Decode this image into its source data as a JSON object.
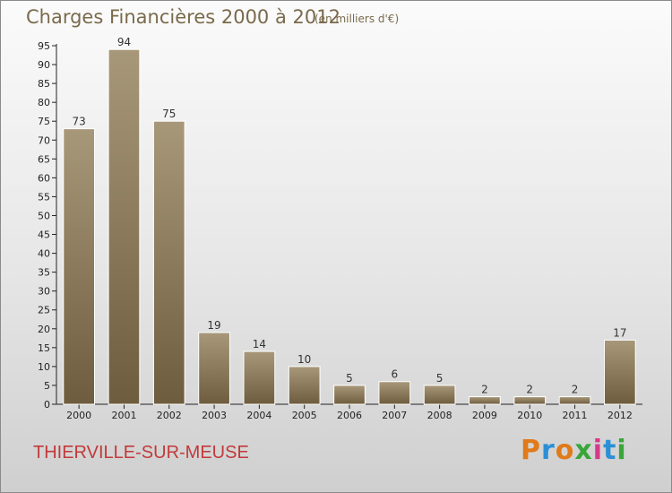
{
  "chart_data": {
    "type": "bar",
    "title": "Charges Financières 2000 à 2012",
    "subtitle": "(en milliers d'€)",
    "categories": [
      "2000",
      "2001",
      "2002",
      "2003",
      "2004",
      "2005",
      "2006",
      "2007",
      "2008",
      "2009",
      "2010",
      "2011",
      "2012"
    ],
    "values": [
      73,
      94,
      75,
      19,
      14,
      10,
      5,
      6,
      5,
      2,
      2,
      2,
      17
    ],
    "data_labels": [
      "73",
      "94",
      "75",
      "19",
      "14",
      "10",
      "5",
      "6",
      "5",
      "2",
      "2",
      "2",
      "17"
    ],
    "y_ticks": [
      "0",
      "5",
      "10",
      "15",
      "20",
      "25",
      "30",
      "35",
      "40",
      "45",
      "50",
      "55",
      "60",
      "65",
      "70",
      "75",
      "80",
      "85",
      "90",
      "95"
    ],
    "ylim": [
      0,
      95
    ],
    "grid": false,
    "bar_color": "#8f7d5c",
    "bar_color_top": "#a8987a",
    "bar_color_bottom": "#6e5c3e"
  },
  "footer": {
    "town": "THIERVILLE-SUR-MEUSE",
    "brand_letters": [
      {
        "ch": "P",
        "color": "#e07a1a"
      },
      {
        "ch": "r",
        "color": "#2a8fd6"
      },
      {
        "ch": "o",
        "color": "#e07a1a"
      },
      {
        "ch": "x",
        "color": "#3aa63a"
      },
      {
        "ch": "i",
        "color": "#d63a8a"
      },
      {
        "ch": "t",
        "color": "#2a8fd6"
      },
      {
        "ch": "i",
        "color": "#3aa63a"
      }
    ]
  }
}
